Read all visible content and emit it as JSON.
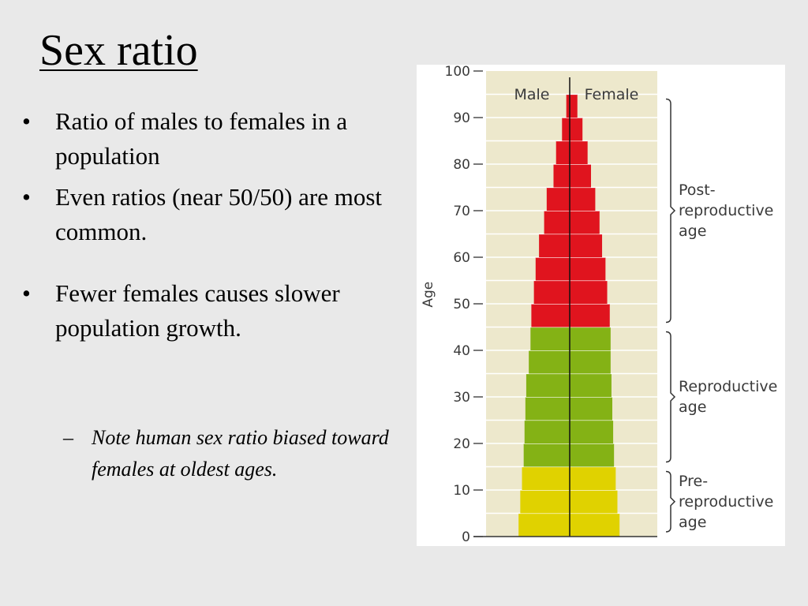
{
  "slide": {
    "title": "Sex ratio",
    "bullets": [
      "Ratio of males to females in a population",
      "Even ratios (near 50/50) are most common.",
      "Fewer females causes slower population growth."
    ],
    "bullet_symbol": "•",
    "sub_bullet": "Note human sex ratio biased toward females at oldest ages.",
    "sub_bullet_symbol": "–"
  },
  "chart_data": {
    "type": "bar",
    "orientation": "horizontal",
    "ylabel": "Age",
    "y_ticks": [
      0,
      10,
      20,
      30,
      40,
      50,
      60,
      70,
      80,
      90,
      100
    ],
    "ylim": [
      0,
      100
    ],
    "series_labels": [
      "Male",
      "Female"
    ],
    "age_bands": [
      {
        "from": 0,
        "to": 5,
        "male": 12.0,
        "female": 11.7
      },
      {
        "from": 5,
        "to": 10,
        "male": 11.6,
        "female": 11.2
      },
      {
        "from": 10,
        "to": 15,
        "male": 11.2,
        "female": 10.8
      },
      {
        "from": 15,
        "to": 20,
        "male": 10.8,
        "female": 10.4
      },
      {
        "from": 20,
        "to": 25,
        "male": 10.6,
        "female": 10.2
      },
      {
        "from": 25,
        "to": 30,
        "male": 10.4,
        "female": 10.0
      },
      {
        "from": 30,
        "to": 35,
        "male": 10.2,
        "female": 9.8
      },
      {
        "from": 35,
        "to": 40,
        "male": 9.6,
        "female": 9.6
      },
      {
        "from": 40,
        "to": 45,
        "male": 9.2,
        "female": 9.6
      },
      {
        "from": 45,
        "to": 50,
        "male": 9.0,
        "female": 9.4
      },
      {
        "from": 50,
        "to": 55,
        "male": 8.4,
        "female": 8.8
      },
      {
        "from": 55,
        "to": 60,
        "male": 8.0,
        "female": 8.4
      },
      {
        "from": 60,
        "to": 65,
        "male": 7.2,
        "female": 7.6
      },
      {
        "from": 65,
        "to": 70,
        "male": 6.0,
        "female": 7.0
      },
      {
        "from": 70,
        "to": 75,
        "male": 5.4,
        "female": 6.0
      },
      {
        "from": 75,
        "to": 80,
        "male": 3.8,
        "female": 5.0
      },
      {
        "from": 80,
        "to": 85,
        "male": 3.2,
        "female": 4.2
      },
      {
        "from": 85,
        "to": 90,
        "male": 1.8,
        "female": 3.0
      },
      {
        "from": 90,
        "to": 95,
        "male": 0.8,
        "female": 1.8
      }
    ],
    "groups": [
      {
        "label": "Pre-\nreproductive\nage",
        "from": 0,
        "to": 15,
        "color": "#e0d200"
      },
      {
        "label": "Reproductive\nage",
        "from": 15,
        "to": 45,
        "color": "#84b215"
      },
      {
        "label": "Post-\nreproductive\nage",
        "from": 45,
        "to": 95,
        "color": "#e0141e"
      }
    ],
    "colors": {
      "plot_background": "#ede8cc",
      "band_line": "#ffffff",
      "axis": "#333333"
    }
  }
}
